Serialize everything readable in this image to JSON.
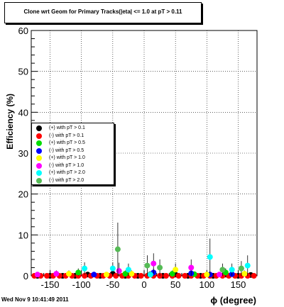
{
  "title": "Clone wrt Geom for Primary Tracks(|eta| <= 1.0 at pT > 0.11",
  "timestamp": "Wed Nov  9 10:41:49 2011",
  "chart_data": {
    "type": "scatter",
    "title": "Clone wrt Geom for Primary Tracks(|eta| <= 1.0 at pT > 0.11",
    "xlabel": "ϕ (degree)",
    "ylabel": "Efficiency (%)",
    "xlim": [
      -180,
      180
    ],
    "ylim": [
      0,
      60
    ],
    "xticks": [
      -150,
      -100,
      -50,
      0,
      50,
      100,
      150
    ],
    "yticks": [
      0,
      10,
      20,
      30,
      40,
      50,
      60
    ],
    "grid": true,
    "legend_position": "center-left",
    "series": [
      {
        "name": "(+) with pT > 0.1",
        "color": "#000000",
        "x": [
          -170,
          -150,
          -130,
          -110,
          -90,
          -70,
          -50,
          -30,
          -10,
          10,
          30,
          50,
          70,
          90,
          110,
          130,
          150,
          170
        ],
        "y": [
          0,
          0,
          0,
          0,
          0.3,
          0,
          0.5,
          0,
          0,
          0.4,
          0,
          0.3,
          0,
          0,
          0,
          0.3,
          0,
          0.2
        ],
        "err": [
          0,
          0,
          0,
          0,
          0.5,
          0,
          0.8,
          0,
          0,
          0.6,
          0,
          0.5,
          0,
          0,
          0,
          0.5,
          0,
          0.4
        ]
      },
      {
        "name": "(-) with pT > 0.1",
        "color": "#ff0000",
        "x": [
          -175,
          -165,
          -155,
          -145,
          -135,
          -125,
          -115,
          -105,
          -95,
          -85,
          -75,
          -65,
          -55,
          -45,
          -35,
          -25,
          -15,
          -5,
          5,
          15,
          25,
          35,
          45,
          55,
          65,
          75,
          85,
          95,
          105,
          115,
          125,
          135,
          145,
          155,
          165,
          175
        ],
        "y": [
          0,
          0,
          0,
          0,
          0,
          0,
          0,
          0,
          0,
          0,
          0,
          0,
          0,
          0,
          0,
          0,
          0,
          0,
          0,
          0,
          0,
          0,
          0,
          0,
          0,
          0,
          0,
          0,
          0,
          0,
          0,
          0,
          0,
          0,
          0,
          0
        ],
        "err": []
      },
      {
        "name": "(+) with pT > 0.5",
        "color": "#00dd00",
        "x": [
          -105,
          -30,
          10,
          45,
          80,
          130
        ],
        "y": [
          0.8,
          0.5,
          0.3,
          0.5,
          0.4,
          0.8
        ],
        "err": [
          1,
          0.8,
          0.6,
          0.8,
          0.6,
          1
        ]
      },
      {
        "name": "(-) with pT > 0.5",
        "color": "#0000ff",
        "x": [
          -80,
          15,
          75,
          105,
          140
        ],
        "y": [
          0.3,
          0.8,
          0.6,
          0.3,
          0.4
        ],
        "err": [
          0.6,
          1,
          0.8,
          0.6,
          0.6
        ]
      },
      {
        "name": "(+) with pT > 1.0",
        "color": "#ffff00",
        "x": [
          -120,
          -60,
          -20,
          50,
          100,
          160
        ],
        "y": [
          0.5,
          0.3,
          0.5,
          1.5,
          0.3,
          0.5
        ],
        "err": [
          0.8,
          0.6,
          0.8,
          1.5,
          0.6,
          0.8
        ]
      },
      {
        "name": "(-) with pT > 1.0",
        "color": "#ff00ff",
        "x": [
          -170,
          -140,
          -40,
          15,
          75,
          120
        ],
        "y": [
          0.3,
          0.5,
          1.2,
          3.0,
          2.0,
          0.3
        ],
        "err": [
          0.6,
          0.8,
          2.0,
          2.5,
          2.0,
          0.6
        ]
      },
      {
        "name": "(+) with pT > 2.0",
        "color": "#00ffff",
        "x": [
          -95,
          -50,
          -25,
          10,
          105,
          140,
          165
        ],
        "y": [
          1.8,
          1.8,
          1.5,
          0.3,
          4.6,
          1.5,
          2.5
        ],
        "err": [
          1.5,
          1.5,
          1.5,
          0.6,
          4.5,
          1.5,
          2.5
        ]
      },
      {
        "name": "(-) with pT > 2.0",
        "color": "#55bb55",
        "x": [
          -42,
          5,
          25,
          125,
          155
        ],
        "y": [
          6.5,
          2.5,
          2.0,
          1.5,
          1.8
        ],
        "err": [
          6.5,
          2.5,
          2.0,
          1.5,
          1.8
        ]
      }
    ]
  }
}
